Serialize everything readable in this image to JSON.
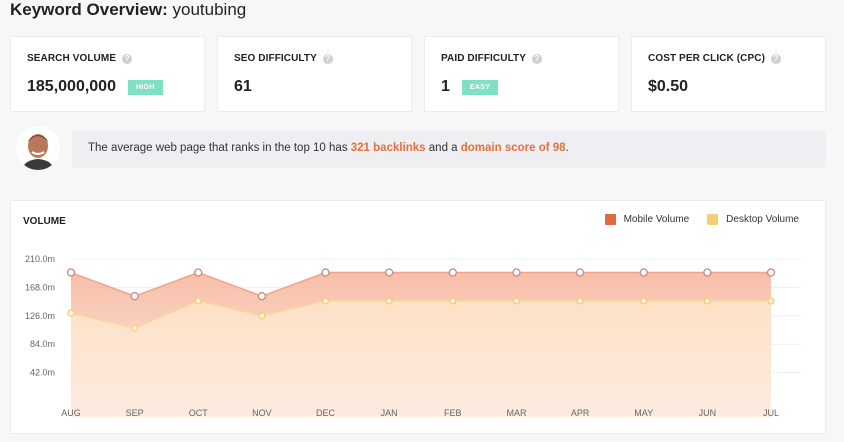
{
  "header": {
    "title_prefix": "Keyword Overview:",
    "keyword": "youtubing"
  },
  "metrics": [
    {
      "label": "SEARCH VOLUME",
      "value": "185,000,000",
      "badge": "HIGH",
      "badge_color": "#7fe0c3"
    },
    {
      "label": "SEO DIFFICULTY",
      "value": "61"
    },
    {
      "label": "PAID DIFFICULTY",
      "value": "1",
      "badge": "EASY",
      "badge_color": "#7fe0c3"
    },
    {
      "label": "COST PER CLICK (CPC)",
      "value": "$0.50"
    }
  ],
  "tip": {
    "prefix": "The average web page that ranks in the top 10 has ",
    "backlinks": "321 backlinks",
    "middle": " and a ",
    "domain": "domain score of 98",
    "suffix": "."
  },
  "chart_data": {
    "type": "area",
    "title": "VOLUME",
    "categories": [
      "AUG",
      "SEP",
      "OCT",
      "NOV",
      "DEC",
      "JAN",
      "FEB",
      "MAR",
      "APR",
      "MAY",
      "JUN",
      "JUL"
    ],
    "y_ticks": [
      "210.0m",
      "168.0m",
      "126.0m",
      "84.0m",
      "42.0m"
    ],
    "ylim": [
      0,
      210
    ],
    "legend_position": "top-right",
    "grid": true,
    "series": [
      {
        "name": "Mobile Volume",
        "color": "#e06a3f",
        "values": [
          190,
          155,
          190,
          155,
          190,
          190,
          190,
          190,
          190,
          190,
          190,
          190
        ]
      },
      {
        "name": "Desktop Volume",
        "color": "#f6cf74",
        "values": [
          130,
          108,
          148,
          126,
          148,
          148,
          148,
          148,
          148,
          148,
          148,
          148
        ]
      }
    ]
  }
}
